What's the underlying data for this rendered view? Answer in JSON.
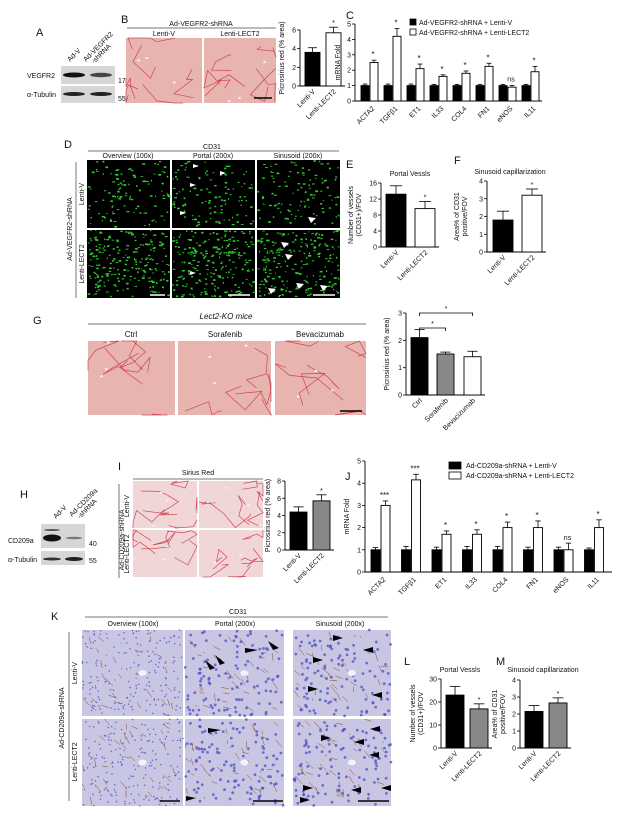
{
  "panel_labels": {
    "A": "A",
    "B": "B",
    "C": "C",
    "D": "D",
    "E": "E",
    "F": "F",
    "G": "G",
    "H": "H",
    "I": "I",
    "J": "J",
    "K": "K",
    "L": "L",
    "M": "M"
  },
  "panel_A": {
    "lane1": "Ad-V",
    "lane2a": "Ad-VEGFR2",
    "lane2b": "-shRNA",
    "protein1": "VEGFR2",
    "protein2": "α-Tubulin",
    "marker1": "170",
    "marker2": "55"
  },
  "panel_B": {
    "group": "Ad-VEGFR2-shRNA",
    "col1": "Lenti-V",
    "col2": "Lenti-LECT2"
  },
  "panel_D": {
    "stain": "CD31",
    "col1": "Overview (100x)",
    "col2": "Portal (200x)",
    "col3": "Sinusoid (200x)",
    "group": "Ad-VEGFR2-shRNA",
    "row1": "Lenti-V",
    "row2": "Lenti-LECT2"
  },
  "panel_G": {
    "title": "Lect2-KO mice",
    "col1": "Ctrl",
    "col2": "Sorafenib",
    "col3": "Bevacizumab"
  },
  "panel_H": {
    "lane1": "Ad-V",
    "lane2a": "Ad-CD209a",
    "lane2b": "-shRNA",
    "protein1": "CD209a",
    "protein2": "α-Tubulin",
    "marker1": "40",
    "marker2": "55"
  },
  "panel_I": {
    "stain": "Sirius Red",
    "group": "Ad-CD209a-shRNA",
    "row1": "Lenti-V",
    "row2": "Lenti-LECT2"
  },
  "panel_K": {
    "stain": "CD31",
    "col1": "Overview (100x)",
    "col2": "Portal (200x)",
    "col3": "Sinusoid (200x)",
    "group": "Ad-CD209a-shRNA",
    "row1": "Lenti-V",
    "row2": "Lenti-LECT2"
  },
  "colors": {
    "black_bar": "#000000",
    "gray_bar": "#888888",
    "white_bar": "#ffffff",
    "sirius_bg": "#e8b4b0",
    "sirius_fiber": "#c8283c",
    "fluor_bg": "#000000",
    "fluor_signal": "#2ecc2e",
    "ihc_bg": "#c9c6e4",
    "ihc_nuclei": "#4a4fc0",
    "ihc_vessel": "#8b4a2a"
  },
  "chart_data": {
    "B": {
      "type": "bar",
      "ylabel": "Picrosirius red (% area)",
      "ylim": [
        0,
        6
      ],
      "yticks": [
        "0",
        "2",
        "4",
        "6"
      ],
      "categories": [
        "Lenti-V",
        "Lenti-LECT2"
      ],
      "values": [
        3.6,
        5.7
      ],
      "errors": [
        0.5,
        0.6
      ],
      "colors": [
        "#000000",
        "#ffffff"
      ],
      "sig": [
        "",
        "*"
      ]
    },
    "C": {
      "type": "bar",
      "ylabel": "mRNA Fold",
      "ylim": [
        0,
        5
      ],
      "yticks": [
        "0",
        "1",
        "2",
        "3",
        "4",
        "5"
      ],
      "categories": [
        "ACTA2",
        "TGFβ1",
        "ET1",
        "IL33",
        "COL4",
        "FN1",
        "eNOS",
        "IL11"
      ],
      "series": [
        {
          "name": "Ad-VEGFR2-shRNA + Lenti-V",
          "values": [
            1,
            1,
            1,
            1,
            1,
            1,
            1,
            1
          ],
          "errors": [
            0.1,
            0.1,
            0.1,
            0.08,
            0.08,
            0.08,
            0.08,
            0.08
          ],
          "color": "#000000"
        },
        {
          "name": "Ad-VEGFR2-shRNA + Lenti-LECT2",
          "values": [
            2.5,
            4.2,
            2.1,
            1.6,
            1.8,
            2.25,
            0.9,
            1.9
          ],
          "errors": [
            0.15,
            0.5,
            0.3,
            0.1,
            0.15,
            0.2,
            0.1,
            0.35
          ],
          "color": "#ffffff"
        }
      ],
      "sig": [
        "*",
        "*",
        "*",
        "*",
        "*",
        "*",
        "ns",
        "*"
      ]
    },
    "E": {
      "type": "bar",
      "title": "Portal Vessls",
      "ylabel": "Number of vessels (CD31+)/FOV",
      "ylim": [
        0,
        16
      ],
      "yticks": [
        "0",
        "4",
        "8",
        "12",
        "16"
      ],
      "categories": [
        "Lenti-V",
        "Lenti-LECT2"
      ],
      "values": [
        13.2,
        9.6
      ],
      "errors": [
        2.1,
        1.8
      ],
      "colors": [
        "#000000",
        "#ffffff"
      ],
      "sig": [
        "",
        "*"
      ]
    },
    "F": {
      "type": "bar",
      "title": "Sinusoid capillarization",
      "ylabel": "Area% of CD31 positive/FOV",
      "ylim": [
        0,
        4
      ],
      "yticks": [
        "0",
        "1",
        "2",
        "3",
        "4"
      ],
      "categories": [
        "Lenti-V",
        "Lenti-LECT2"
      ],
      "values": [
        1.8,
        3.2
      ],
      "errors": [
        0.5,
        0.35
      ],
      "colors": [
        "#000000",
        "#ffffff"
      ],
      "sig": [
        "",
        "*"
      ]
    },
    "G": {
      "type": "bar",
      "ylabel": "Picrosirius red (% area)",
      "ylim": [
        0,
        3
      ],
      "yticks": [
        "0",
        "1",
        "2",
        "3"
      ],
      "categories": [
        "Ctrl",
        "Sorafenib",
        "Bevacizumab"
      ],
      "values": [
        2.1,
        1.5,
        1.4
      ],
      "errors": [
        0.3,
        0.07,
        0.2
      ],
      "colors": [
        "#000000",
        "#888888",
        "#ffffff"
      ],
      "brackets": [
        {
          "from": "Ctrl",
          "to": "Sorafenib",
          "label": "*"
        },
        {
          "from": "Ctrl",
          "to": "Bevacizumab",
          "label": "*"
        }
      ]
    },
    "I": {
      "type": "bar",
      "ylabel": "Picrosirius red (% area)",
      "ylim": [
        0,
        8
      ],
      "yticks": [
        "0",
        "2",
        "4",
        "6",
        "8"
      ],
      "categories": [
        "Lenti-V",
        "Lenti-LECT2"
      ],
      "values": [
        4.4,
        5.7
      ],
      "errors": [
        0.6,
        0.7
      ],
      "colors": [
        "#000000",
        "#888888"
      ],
      "sig": [
        "",
        "*"
      ]
    },
    "J": {
      "type": "bar",
      "ylabel": "mRNA Fold",
      "ylim": [
        0,
        5
      ],
      "yticks": [
        "0",
        "1",
        "2",
        "3",
        "4",
        "5"
      ],
      "categories": [
        "ACTA2",
        "TGFβ1",
        "ET1",
        "IL33",
        "COL4",
        "FN1",
        "eNOS",
        "IL11"
      ],
      "series": [
        {
          "name": "Ad-CD209a-shRNA + Lenti-V",
          "values": [
            1,
            1,
            1,
            1,
            1,
            1,
            1,
            1
          ],
          "errors": [
            0.1,
            0.15,
            0.12,
            0.15,
            0.15,
            0.12,
            0.12,
            0.08
          ],
          "color": "#000000"
        },
        {
          "name": "Ad-CD209a-shRNA + Lenti-LECT2",
          "values": [
            3.0,
            4.15,
            1.7,
            1.7,
            2.0,
            2.0,
            1.0,
            2.0
          ],
          "errors": [
            0.2,
            0.25,
            0.15,
            0.2,
            0.25,
            0.3,
            0.3,
            0.35
          ],
          "color": "#ffffff"
        }
      ],
      "sig": [
        "***",
        "***",
        "*",
        "*",
        "*",
        "*",
        "ns",
        "*"
      ]
    },
    "L": {
      "type": "bar",
      "title": "Portal Vessls",
      "ylabel": "Number of vessels (CD31+)/FOV",
      "ylim": [
        0,
        30
      ],
      "yticks": [
        "0",
        "10",
        "20",
        "30"
      ],
      "categories": [
        "Lenti-V",
        "Lenti-LECT2"
      ],
      "values": [
        23,
        17
      ],
      "errors": [
        3.8,
        2.2
      ],
      "colors": [
        "#000000",
        "#888888"
      ],
      "sig": [
        "",
        "*"
      ]
    },
    "M": {
      "type": "bar",
      "title": "Sinusoid capillarization",
      "ylabel": "Area% of CD31 positive/FOV",
      "ylim": [
        0,
        4
      ],
      "yticks": [
        "0",
        "1",
        "2",
        "3",
        "4"
      ],
      "categories": [
        "Lenti-V",
        "Lenti-LECT2"
      ],
      "values": [
        2.15,
        2.65
      ],
      "errors": [
        0.35,
        0.3
      ],
      "colors": [
        "#000000",
        "#888888"
      ],
      "sig": [
        "",
        "*"
      ]
    }
  }
}
